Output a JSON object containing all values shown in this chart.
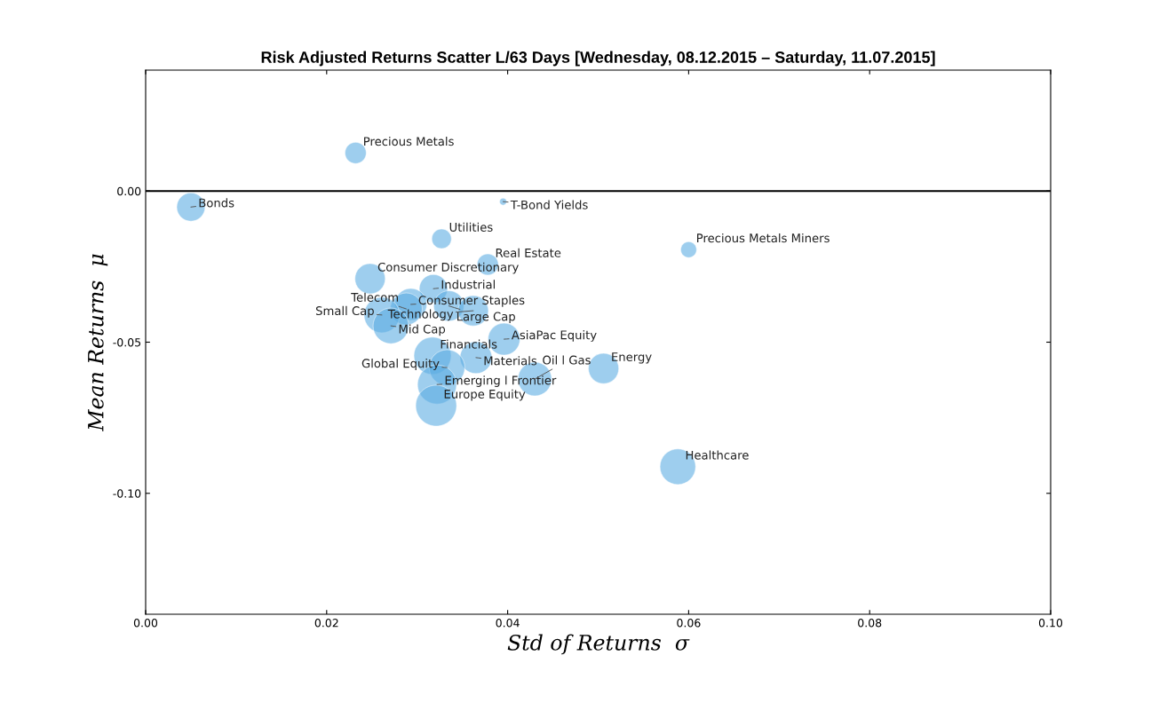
{
  "chart_data": {
    "type": "bubble",
    "title": "Risk Adjusted Returns Scatter L/63 Days [Wednesday, 08.12.2015 – Saturday, 11.07.2015]",
    "xlabel": "Std of Returns  σ",
    "ylabel": "Mean Returns  μ",
    "series": [
      {
        "color": "#5dade2",
        "x": [
          0.0232,
          0.005,
          0.0395,
          0.0327,
          0.06,
          0.0378,
          0.0248,
          0.0318,
          0.0293,
          0.0288,
          0.0335,
          0.0362,
          0.0261,
          0.0271,
          0.0396,
          0.0317,
          0.0365,
          0.0333,
          0.0322,
          0.043,
          0.0506,
          0.0321,
          0.0588
        ],
        "values": [
          0.0126,
          -0.0053,
          -0.0035,
          -0.0158,
          -0.0194,
          -0.0243,
          -0.029,
          -0.0323,
          -0.0375,
          -0.039,
          -0.038,
          -0.0396,
          -0.041,
          -0.0446,
          -0.049,
          -0.0545,
          -0.0551,
          -0.0584,
          -0.064,
          -0.0622,
          -0.0587,
          -0.071,
          -0.0912
        ],
        "sizes": [
          0.27,
          0.48,
          0.03,
          0.23,
          0.15,
          0.27,
          0.55,
          0.48,
          0.61,
          0.61,
          0.55,
          0.55,
          0.76,
          0.76,
          0.61,
          0.83,
          0.61,
          0.76,
          0.91,
          0.68,
          0.55,
          1,
          0.76
        ]
      }
    ],
    "annotations": [
      {
        "text": "Precious Metals",
        "x": 0.0232,
        "y": 0.0126
      },
      {
        "text": "Bonds",
        "x": 0.005,
        "y": -0.0053
      },
      {
        "text": "T-Bond Yields",
        "x": 0.0395,
        "y": -0.0035
      },
      {
        "text": "Utilities",
        "x": 0.0327,
        "y": -0.0158
      },
      {
        "text": "Precious Metals Miners",
        "x": 0.06,
        "y": -0.0194
      },
      {
        "text": "Real Estate",
        "x": 0.0378,
        "y": -0.0243
      },
      {
        "text": "Consumer Discretionary",
        "x": 0.0248,
        "y": -0.029
      },
      {
        "text": "Industrial",
        "x": 0.0318,
        "y": -0.0323
      },
      {
        "text": "Consumer Staples",
        "x": 0.0293,
        "y": -0.0375
      },
      {
        "text": "Telecom",
        "x": 0.0288,
        "y": -0.039
      },
      {
        "text": "Large Cap",
        "x": 0.0335,
        "y": -0.038
      },
      {
        "text": "Technology",
        "x": 0.0362,
        "y": -0.0396
      },
      {
        "text": "Small Cap",
        "x": 0.0261,
        "y": -0.041
      },
      {
        "text": "Mid Cap",
        "x": 0.0271,
        "y": -0.0446
      },
      {
        "text": "AsiaPac Equity",
        "x": 0.0396,
        "y": -0.049
      },
      {
        "text": "Financials",
        "x": 0.0317,
        "y": -0.0545
      },
      {
        "text": "Materials",
        "x": 0.0365,
        "y": -0.0551
      },
      {
        "text": "Global Equity",
        "x": 0.0333,
        "y": -0.0584
      },
      {
        "text": "Emerging l Frontier",
        "x": 0.0322,
        "y": -0.064
      },
      {
        "text": "Oil l Gas",
        "x": 0.043,
        "y": -0.0622
      },
      {
        "text": "Energy",
        "x": 0.0506,
        "y": -0.0587
      },
      {
        "text": "Europe Equity",
        "x": 0.0321,
        "y": -0.071
      },
      {
        "text": "Healthcare",
        "x": 0.0588,
        "y": -0.0912
      }
    ],
    "xlim": [
      0,
      0.1
    ],
    "ylim": [
      -0.14,
      0.04
    ],
    "xticks": [
      {
        "value": 0,
        "label": "0.00"
      },
      {
        "value": 0.02,
        "label": "0.02"
      },
      {
        "value": 0.04,
        "label": "0.04"
      },
      {
        "value": 0.06,
        "label": "0.06"
      },
      {
        "value": 0.08,
        "label": "0.08"
      },
      {
        "value": 0.1,
        "label": "0.10"
      }
    ],
    "yticks": [
      {
        "value": 0,
        "label": "0.00"
      },
      {
        "value": -0.05,
        "label": "-0.05"
      },
      {
        "value": -0.1,
        "label": "-0.10"
      }
    ],
    "ref_lines": [
      {
        "axis": "y",
        "value": 0,
        "color": "#000000",
        "line_style": "solid"
      }
    ],
    "grid": false,
    "legend": false
  }
}
